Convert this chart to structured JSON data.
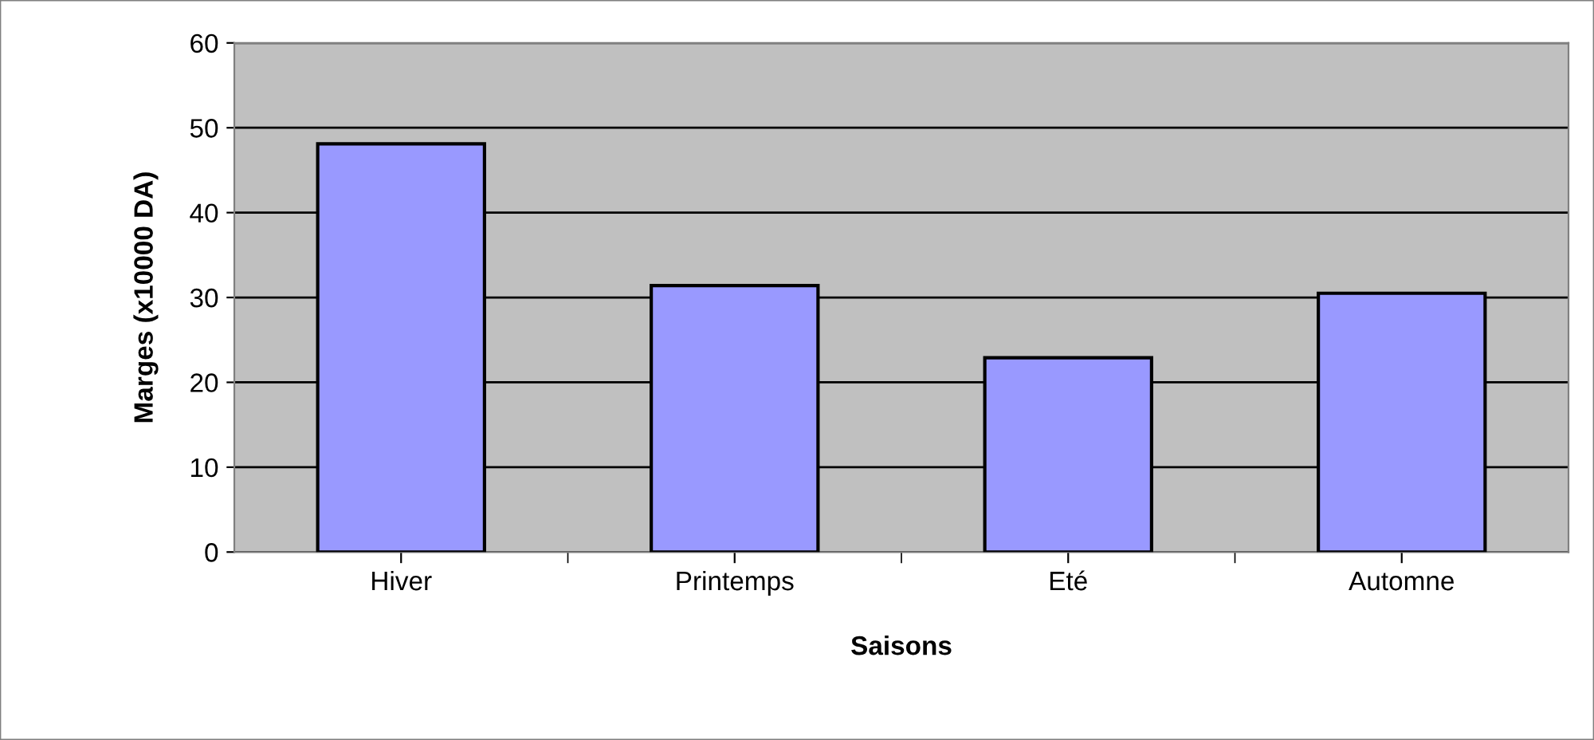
{
  "chart_data": {
    "type": "bar",
    "xlabel": "Saisons",
    "ylabel": "Marges (x10000 DA)",
    "categories": [
      "Hiver",
      "Printemps",
      "Eté",
      "Automne"
    ],
    "values": [
      48.1,
      31.4,
      22.9,
      30.5
    ],
    "color": "#9999ff",
    "ylim": [
      0,
      60
    ],
    "yticks": [
      0,
      10,
      20,
      30,
      40,
      50,
      60
    ],
    "grid": "y"
  }
}
